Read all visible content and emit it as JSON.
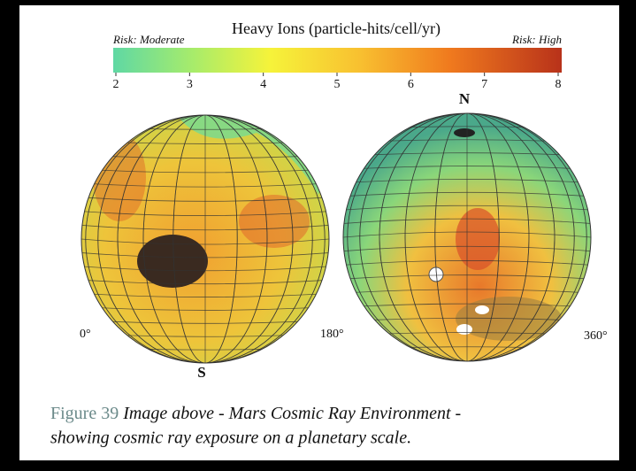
{
  "colorbar": {
    "title": "Heavy Ions (particle-hits/cell/yr)",
    "risk_low": "Risk: Moderate",
    "risk_high": "Risk: High",
    "ticks": [
      2,
      3,
      4,
      5,
      6,
      7,
      8
    ]
  },
  "globes": {
    "north_label": "N",
    "south_label": "S",
    "longitudes": [
      "0°",
      "180°",
      "360°"
    ]
  },
  "caption": {
    "figure_label": "Figure 39",
    "text_line1": "Image above - Mars Cosmic Ray Environment -",
    "text_line2": "showing cosmic ray exposure on a planetary scale."
  }
}
